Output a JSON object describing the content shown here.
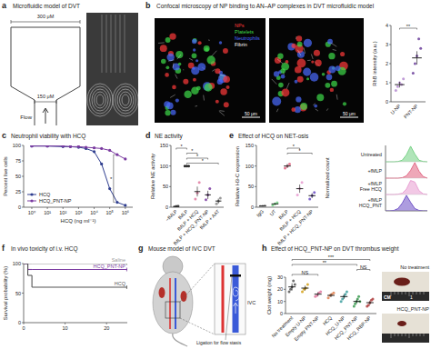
{
  "chart_data": [
    {
      "type": "dot",
      "y_label": "RhB intensity (a.u.)",
      "categories": [
        "U-NP",
        "PNT-NP"
      ],
      "values": [
        0.9,
        2.3
      ],
      "errors": [
        0.15,
        0.35
      ],
      "points": [
        [
          0.6,
          0.8,
          1.0,
          0.9,
          1.2
        ],
        [
          1.5,
          2.0,
          2.4,
          3.3,
          2.8
        ]
      ],
      "colors": [
        "#b58bd0",
        "#6a3d9a"
      ],
      "ylim": [
        0,
        4
      ],
      "yticks": [
        0,
        1,
        2,
        3,
        4
      ],
      "annotations": [
        "**"
      ],
      "comparisons": [
        [
          0,
          1
        ]
      ]
    },
    {
      "type": "line",
      "panel": "c",
      "title": "Neutrophil viability with HCQ",
      "x_label": "HCQ (ng ml⁻¹)",
      "y_label": "Percent live cells",
      "log": "x",
      "x": [
        1,
        10,
        100,
        300,
        1000,
        3000,
        10000,
        30000,
        100000,
        300000,
        1000000
      ],
      "xlim": [
        0.3,
        3000000
      ],
      "xticks": [
        {
          "value": 1,
          "label": "10⁰"
        },
        {
          "value": 10,
          "label": "10¹"
        },
        {
          "value": 100,
          "label": "10²"
        },
        {
          "value": 1000,
          "label": "10³"
        },
        {
          "value": 10000,
          "label": "10⁴"
        },
        {
          "value": 100000,
          "label": "10⁵"
        },
        {
          "value": 1000000,
          "label": "10⁶"
        }
      ],
      "ylim": [
        0,
        100
      ],
      "yticks": [
        0,
        25,
        50,
        75,
        100
      ],
      "legend": "lower left",
      "series": [
        {
          "name": "HCQ",
          "color": "#2e3d8f",
          "marker": "circle",
          "values": [
            99,
            99,
            98,
            98,
            97,
            95,
            90,
            70,
            30,
            8,
            3
          ]
        },
        {
          "name": "HCQ_PNT-NP",
          "color": "#7a3aa0",
          "marker": "circle",
          "values": [
            99,
            99,
            99,
            98,
            98,
            97,
            96,
            95,
            92,
            85,
            78
          ]
        }
      ],
      "annotations": [
        "*"
      ]
    },
    {
      "type": "dot",
      "panel": "d",
      "title": "NE activity",
      "y_label": "Relative NE activity",
      "categories": [
        "−fMLP",
        "fMLP",
        "fMLP + HCQ",
        "fMLP + HCQ_PNT-NP",
        "fMLP + AAT"
      ],
      "values": [
        2,
        100,
        38,
        30,
        15
      ],
      "errors": [
        1,
        0,
        12,
        10,
        6
      ],
      "points": [
        [
          0,
          2,
          3
        ],
        [
          100,
          100,
          100
        ],
        [
          20,
          35,
          60
        ],
        [
          18,
          30,
          45
        ],
        [
          8,
          15,
          22
        ]
      ],
      "colors": [
        "#444444",
        "#222222",
        "#e07aa0",
        "#7a3aa0",
        "#888888"
      ],
      "ylim": [
        0,
        150
      ],
      "yticks": [
        0,
        50,
        100,
        150
      ],
      "annotations": [
        "*",
        "*",
        "*",
        "*"
      ],
      "comparisons": [
        [
          0,
          1
        ],
        [
          1,
          2
        ],
        [
          1,
          3
        ],
        [
          1,
          4
        ]
      ]
    },
    {
      "type": "dot",
      "panel": "e",
      "title": "Effect of HCQ on NET-osis",
      "y_label": "Relative H3-C expression",
      "categories": [
        "IgG",
        "UT",
        "fMLP",
        "fMLP + HCQ",
        "fMLP + HCQ_PNT-NP"
      ],
      "values": [
        3,
        8,
        100,
        45,
        28
      ],
      "errors": [
        1,
        2,
        5,
        10,
        6
      ],
      "points": [
        [
          2,
          3,
          4
        ],
        [
          5,
          8,
          11
        ],
        [
          95,
          100,
          105
        ],
        [
          30,
          45,
          60
        ],
        [
          20,
          28,
          36
        ]
      ],
      "colors": [
        "#999999",
        "#6fcf7f",
        "#e0607e",
        "#e89ad0",
        "#6a4bc4"
      ],
      "ylim": [
        0,
        150
      ],
      "yticks": [
        0,
        50,
        100,
        150
      ],
      "annotations": [
        "*",
        "*"
      ],
      "comparisons": [
        [
          2,
          3
        ],
        [
          2,
          4
        ]
      ]
    },
    {
      "type": "ridge",
      "y_label": "Normalized count",
      "tick_labels": false,
      "x": [
        0,
        1,
        2,
        3,
        4,
        5,
        6,
        7,
        8,
        9,
        10
      ],
      "xlim": [
        0,
        10
      ],
      "ylim": [
        0,
        1
      ],
      "series": [
        {
          "name": "Untreated",
          "color": "#6fcf7f",
          "values": [
            0,
            0,
            0,
            0.02,
            0.1,
            0.45,
            1,
            0.5,
            0.1,
            0.02,
            0
          ]
        },
        {
          "name": "+fMLP",
          "color": "#e0607e",
          "values": [
            0,
            0,
            0,
            0,
            0.03,
            0.15,
            0.5,
            1,
            0.45,
            0.1,
            0
          ]
        },
        {
          "name": "+fMLP Free HCQ",
          "color": "#e89ad0",
          "values": [
            0,
            0,
            0,
            0.02,
            0.08,
            0.35,
            0.9,
            0.8,
            0.25,
            0.04,
            0
          ]
        },
        {
          "name": "+fMLP HCQ_PNT",
          "color": "#6a4bc4",
          "values": [
            0,
            0,
            0.03,
            0.15,
            0.5,
            1,
            0.55,
            0.15,
            0.03,
            0,
            0
          ]
        }
      ]
    },
    {
      "type": "step",
      "panel": "f",
      "title": "In vivo toxicity of i.v. HCQ",
      "y_label": "Survival probability (%)",
      "x": [
        0,
        1,
        2,
        25
      ],
      "xlim": [
        0,
        25
      ],
      "xticks": [
        0,
        10,
        20
      ],
      "ylim": [
        0,
        100
      ],
      "yticks": [
        0,
        50,
        100
      ],
      "legend": "right",
      "series": [
        {
          "name": "Saline",
          "color": "#999999",
          "values": [
            100,
            100,
            100,
            100
          ]
        },
        {
          "name": "HCQ_PNT-NP",
          "color": "#7a3aa0",
          "values": [
            100,
            90,
            90,
            90
          ]
        },
        {
          "name": "HCQ",
          "color": "#555555",
          "values": [
            100,
            80,
            60,
            60
          ]
        }
      ]
    },
    {
      "type": "dot",
      "panel": "h",
      "title": "Effect of HCQ_PNT-NP on DVT thrombus weight",
      "y_label": "Clot weight (mg)",
      "categories": [
        "No treatment",
        "Empty U-NP",
        "Empty PNT-NP",
        "HCQ",
        "HCQ_U-NP",
        "HCQ_PNT-NP",
        "HCQ_RBP-NP"
      ],
      "values": [
        22,
        21,
        16,
        15,
        14,
        10,
        9
      ],
      "errors": [
        3,
        2,
        1.5,
        1.5,
        2,
        1.5,
        1.5
      ],
      "points": [
        [
          18,
          20,
          22,
          27,
          24
        ],
        [
          18,
          20,
          21,
          24
        ],
        [
          14,
          15,
          17,
          18
        ],
        [
          13,
          15,
          16,
          17
        ],
        [
          10,
          12,
          14,
          16,
          18
        ],
        [
          6,
          8,
          10,
          12,
          14,
          10
        ],
        [
          6,
          7,
          9,
          11,
          12
        ]
      ],
      "colors": [
        "#555555",
        "#d4a017",
        "#e07aa0",
        "#e08050",
        "#40a0a0",
        "#3a9a50",
        "#b04040"
      ],
      "ylim": [
        0,
        30
      ],
      "yticks": [
        0,
        10,
        20,
        30
      ],
      "annotations": [
        "NS",
        "NS",
        "**",
        "***"
      ],
      "comparisons": [
        [
          0,
          2
        ],
        [
          5,
          6
        ],
        [
          0,
          5
        ],
        [
          0,
          6
        ]
      ]
    }
  ],
  "images": [
    {
      "panel": "a",
      "title": "Microfluidic model of DVT",
      "labels": [
        "300 μM",
        "150 μM",
        "Flow"
      ]
    },
    {
      "panel": "b",
      "title": "Confocal microscopy of NP binding to AN–AP complexes in DVT microfluidic model",
      "channels": [
        "NPs",
        "Platelets",
        "Neutrophils",
        "Fibrin"
      ],
      "colors": [
        "#ff3b3b",
        "#3fdc4a",
        "#4a6bff",
        "#ffffff"
      ],
      "scale_bars": [
        "50 μm",
        "50 μm"
      ]
    },
    {
      "panel": "g",
      "title": "Mouse model of IVC DVT",
      "labels": [
        "IVC",
        "Ligation for flow stasis"
      ]
    },
    {
      "labels": [
        "No treatment",
        "HCQ_PNT-NP"
      ],
      "ruler": [
        "CM",
        "1"
      ]
    }
  ]
}
